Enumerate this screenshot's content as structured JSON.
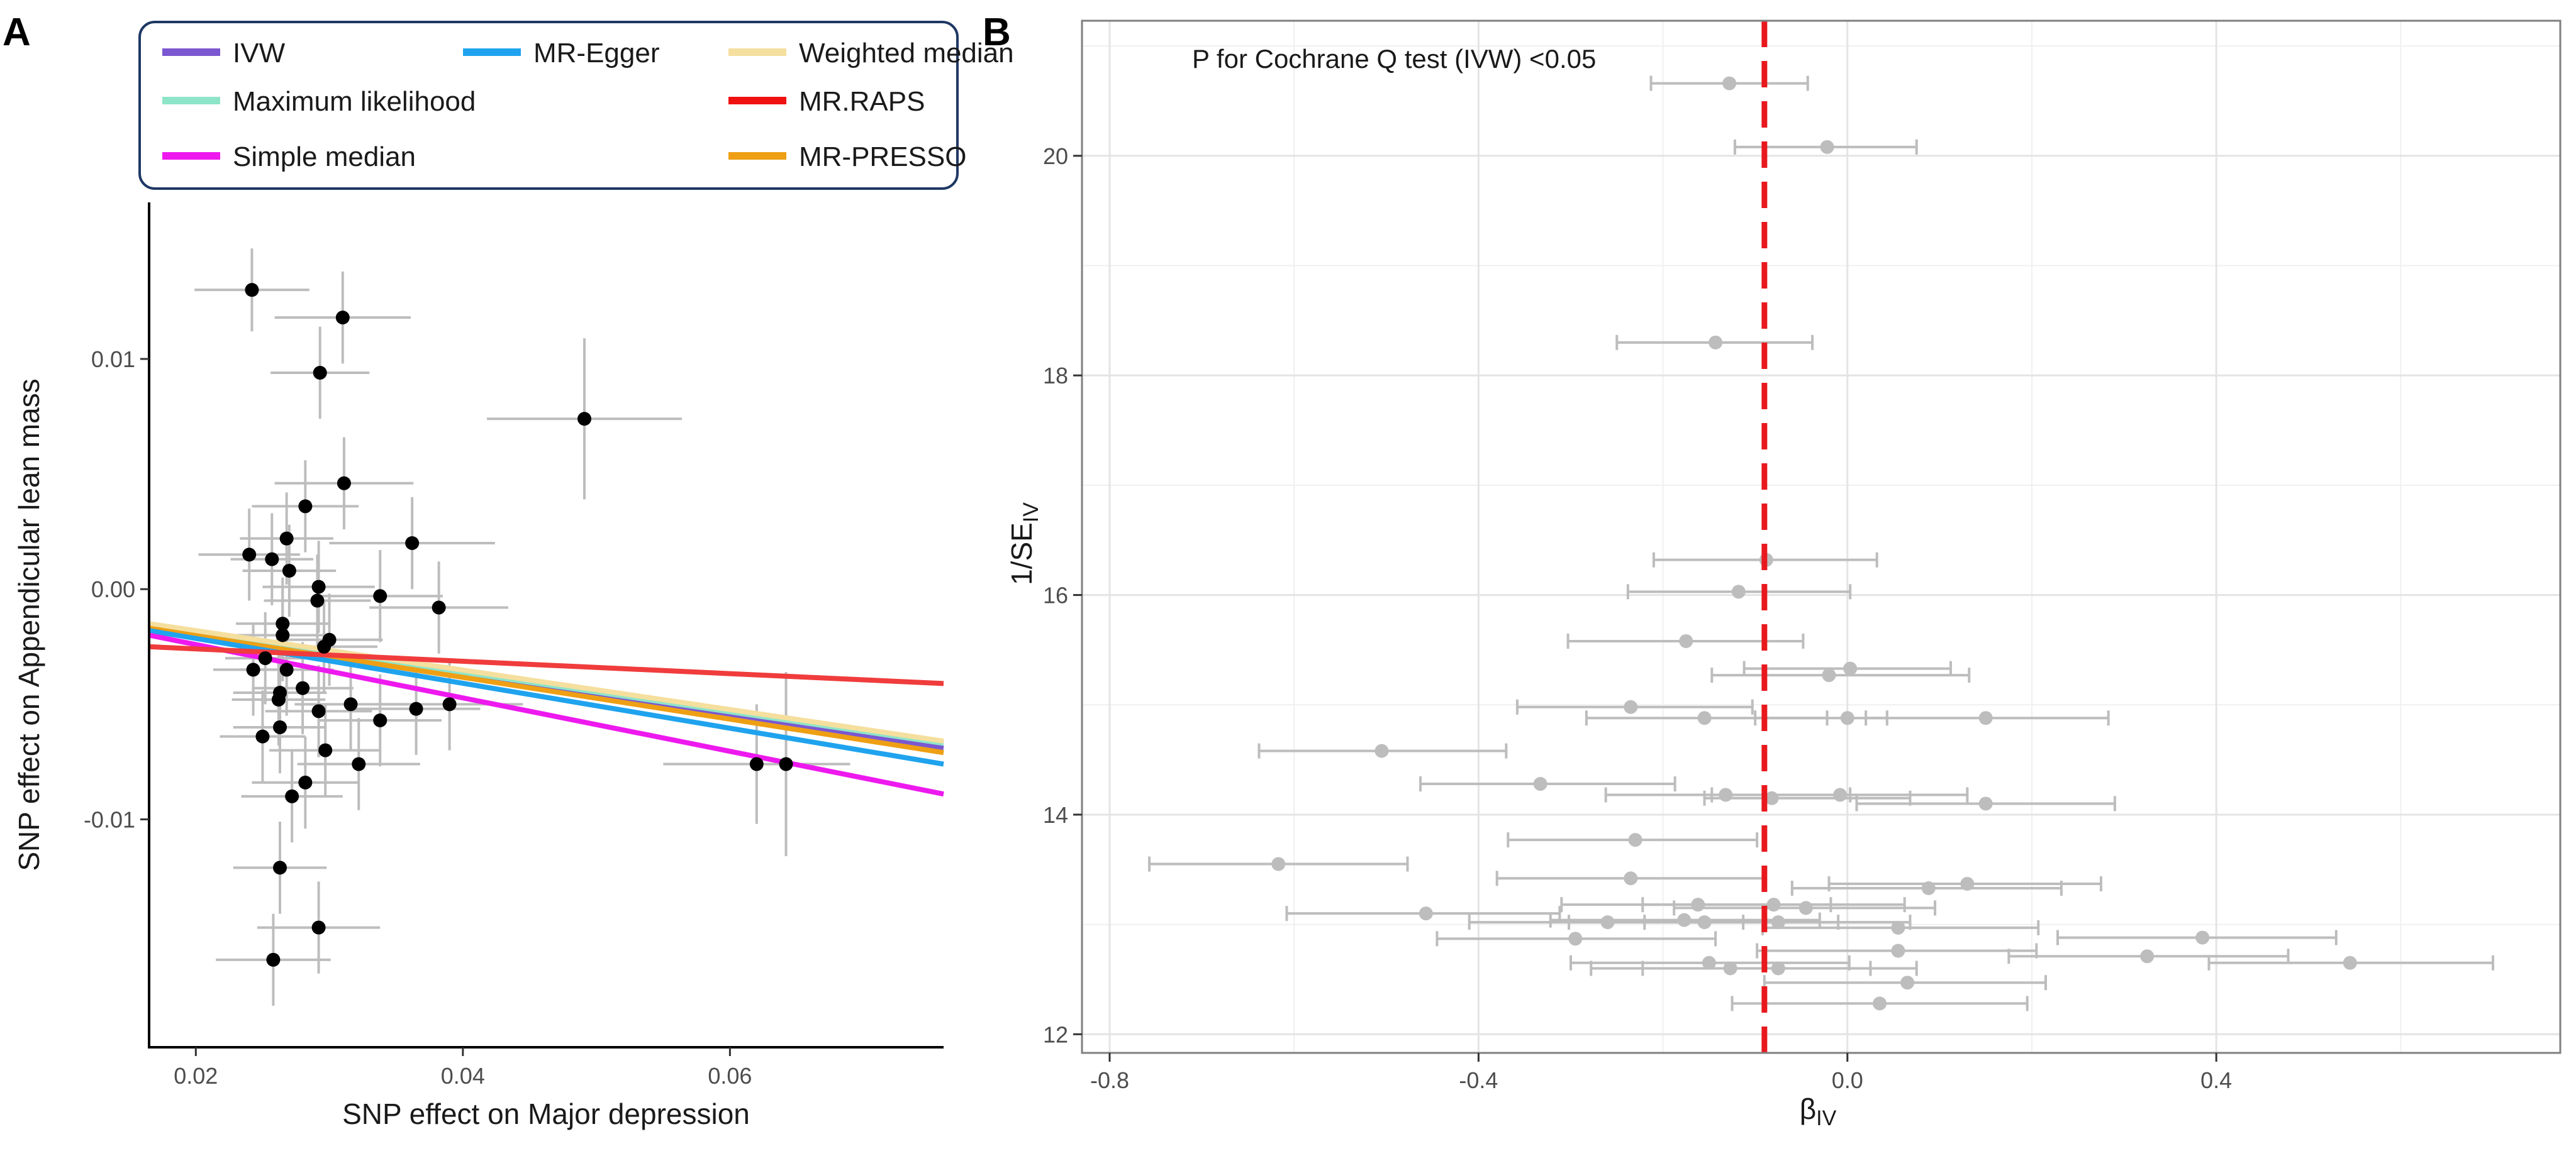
{
  "panels": {
    "a_letter": "A",
    "b_letter": "B"
  },
  "chart_data": [
    {
      "id": "A",
      "type": "scatter",
      "title": "",
      "xlabel": "SNP effect on Major depression",
      "ylabel": "SNP effect on Appendicular lean mass",
      "xlim": [
        0.0165,
        0.076
      ],
      "ylim": [
        -0.0199,
        0.0168
      ],
      "xticks": [
        0.02,
        0.04,
        0.06
      ],
      "xtick_labels": [
        "0.02",
        "0.04",
        "0.06"
      ],
      "yticks": [
        -0.01,
        0.0,
        0.01
      ],
      "ytick_labels": [
        "-0.01",
        "0.00",
        "0.01"
      ],
      "grid": false,
      "legend_position": "top",
      "points": [
        {
          "x": 0.0242,
          "y": 0.013,
          "xerr": 0.0043,
          "yerr": 0.0018
        },
        {
          "x": 0.031,
          "y": 0.0118,
          "xerr": 0.0051,
          "yerr": 0.002
        },
        {
          "x": 0.0293,
          "y": 0.0094,
          "xerr": 0.0037,
          "yerr": 0.002
        },
        {
          "x": 0.0491,
          "y": 0.0074,
          "xerr": 0.0073,
          "yerr": 0.0035
        },
        {
          "x": 0.0311,
          "y": 0.0046,
          "xerr": 0.0052,
          "yerr": 0.002
        },
        {
          "x": 0.0282,
          "y": 0.0036,
          "xerr": 0.004,
          "yerr": 0.002
        },
        {
          "x": 0.0268,
          "y": 0.0022,
          "xerr": 0.0035,
          "yerr": 0.002
        },
        {
          "x": 0.0362,
          "y": 0.002,
          "xerr": 0.0062,
          "yerr": 0.002
        },
        {
          "x": 0.024,
          "y": 0.0015,
          "xerr": 0.0038,
          "yerr": 0.002
        },
        {
          "x": 0.0257,
          "y": 0.0013,
          "xerr": 0.0031,
          "yerr": 0.002
        },
        {
          "x": 0.027,
          "y": 0.0008,
          "xerr": 0.0035,
          "yerr": 0.002
        },
        {
          "x": 0.0292,
          "y": 0.0001,
          "xerr": 0.0042,
          "yerr": 0.002
        },
        {
          "x": 0.0338,
          "y": -0.0003,
          "xerr": 0.0047,
          "yerr": 0.002
        },
        {
          "x": 0.0291,
          "y": -0.0005,
          "xerr": 0.004,
          "yerr": 0.002
        },
        {
          "x": 0.0382,
          "y": -0.0008,
          "xerr": 0.0052,
          "yerr": 0.002
        },
        {
          "x": 0.0265,
          "y": -0.0015,
          "xerr": 0.0035,
          "yerr": 0.002
        },
        {
          "x": 0.0265,
          "y": -0.002,
          "xerr": 0.0035,
          "yerr": 0.002
        },
        {
          "x": 0.03,
          "y": -0.0022,
          "xerr": 0.004,
          "yerr": 0.002
        },
        {
          "x": 0.0296,
          "y": -0.0025,
          "xerr": 0.004,
          "yerr": 0.002
        },
        {
          "x": 0.0252,
          "y": -0.003,
          "xerr": 0.003,
          "yerr": 0.002
        },
        {
          "x": 0.0243,
          "y": -0.0035,
          "xerr": 0.003,
          "yerr": 0.002
        },
        {
          "x": 0.0268,
          "y": -0.0035,
          "xerr": 0.0035,
          "yerr": 0.002
        },
        {
          "x": 0.028,
          "y": -0.0043,
          "xerr": 0.0038,
          "yerr": 0.002
        },
        {
          "x": 0.0263,
          "y": -0.0045,
          "xerr": 0.0035,
          "yerr": 0.002
        },
        {
          "x": 0.0262,
          "y": -0.0048,
          "xerr": 0.0035,
          "yerr": 0.002
        },
        {
          "x": 0.0292,
          "y": -0.0053,
          "xerr": 0.004,
          "yerr": 0.002
        },
        {
          "x": 0.039,
          "y": -0.005,
          "xerr": 0.0055,
          "yerr": 0.002
        },
        {
          "x": 0.0316,
          "y": -0.005,
          "xerr": 0.0042,
          "yerr": 0.002
        },
        {
          "x": 0.0365,
          "y": -0.0052,
          "xerr": 0.0048,
          "yerr": 0.002
        },
        {
          "x": 0.0338,
          "y": -0.0057,
          "xerr": 0.0046,
          "yerr": 0.002
        },
        {
          "x": 0.0263,
          "y": -0.006,
          "xerr": 0.0035,
          "yerr": 0.002
        },
        {
          "x": 0.025,
          "y": -0.0064,
          "xerr": 0.0032,
          "yerr": 0.002
        },
        {
          "x": 0.0297,
          "y": -0.007,
          "xerr": 0.0042,
          "yerr": 0.002
        },
        {
          "x": 0.0322,
          "y": -0.0076,
          "xerr": 0.0046,
          "yerr": 0.002
        },
        {
          "x": 0.062,
          "y": -0.0076,
          "xerr": 0.007,
          "yerr": 0.0026
        },
        {
          "x": 0.0642,
          "y": -0.0076,
          "xerr": 0.0048,
          "yerr": 0.004
        },
        {
          "x": 0.0282,
          "y": -0.0084,
          "xerr": 0.004,
          "yerr": 0.002
        },
        {
          "x": 0.0272,
          "y": -0.009,
          "xerr": 0.0038,
          "yerr": 0.002
        },
        {
          "x": 0.0263,
          "y": -0.0121,
          "xerr": 0.0035,
          "yerr": 0.002
        },
        {
          "x": 0.0292,
          "y": -0.0147,
          "xerr": 0.0046,
          "yerr": 0.002
        },
        {
          "x": 0.0258,
          "y": -0.0161,
          "xerr": 0.0043,
          "yerr": 0.002
        }
      ],
      "lines": [
        {
          "name": "IVW",
          "color": "#7b57d1",
          "x0": 0.0165,
          "y0": -0.0017,
          "x1": 0.076,
          "y1": -0.0069
        },
        {
          "name": "Maximum likelihood",
          "color": "#8ee4c8",
          "x0": 0.0165,
          "y0": -0.0016,
          "x1": 0.076,
          "y1": -0.0067
        },
        {
          "name": "Weighted median",
          "color": "#f5df9e",
          "x0": 0.0165,
          "y0": -0.0015,
          "x1": 0.076,
          "y1": -0.0066
        },
        {
          "name": "MR-PRESSO",
          "color": "#ee9f14",
          "x0": 0.0165,
          "y0": -0.0017,
          "x1": 0.076,
          "y1": -0.0071
        },
        {
          "name": "MR-Egger",
          "color": "#1fa3ee",
          "x0": 0.0165,
          "y0": -0.0018,
          "x1": 0.076,
          "y1": -0.0076
        },
        {
          "name": "Simple median",
          "color": "#ee19ee",
          "x0": 0.0165,
          "y0": -0.002,
          "x1": 0.076,
          "y1": -0.0089
        },
        {
          "name": "MR.RAPS",
          "color": "#f03c3c",
          "x0": 0.0165,
          "y0": -0.0025,
          "x1": 0.076,
          "y1": -0.0041
        }
      ],
      "legend": [
        {
          "name": "IVW",
          "color": "#7b57d1"
        },
        {
          "name": "MR-Egger",
          "color": "#1fa3ee"
        },
        {
          "name": "Weighted median",
          "color": "#f5df9e"
        },
        {
          "name": "Maximum likelihood",
          "color": "#8ee4c8"
        },
        {
          "name": "MR.RAPS",
          "color": "#f01010"
        },
        {
          "name": "Simple median",
          "color": "#ee19ee"
        },
        {
          "name": "MR-PRESSO",
          "color": "#ee9f14"
        }
      ]
    },
    {
      "id": "B",
      "type": "scatter",
      "title": "",
      "xlabel": "βIV",
      "xlabel_main": "β",
      "xlabel_sub": "IV",
      "ylabel": "1/SEIV",
      "ylabel_main": "1/SE",
      "ylabel_sub": "IV",
      "annotation": "P for Cochrane Q test (IVW) <0.05",
      "xlim": [
        -0.83,
        0.773
      ],
      "ylim": [
        11.83,
        21.23
      ],
      "xticks": [
        -0.8,
        -0.4,
        0.0,
        0.4
      ],
      "xtick_labels": [
        "-0.8",
        "-0.4",
        "0.0",
        "0.4"
      ],
      "yticks": [
        12,
        14,
        16,
        18,
        20
      ],
      "ytick_labels": [
        "12",
        "14",
        "16",
        "18",
        "20"
      ],
      "minor_xgrid": [
        -0.6,
        -0.2,
        0.2,
        0.6
      ],
      "minor_ygrid": [
        13,
        15,
        17,
        19,
        21
      ],
      "grid": true,
      "reference_line": {
        "x": -0.09,
        "color": "#e8191e",
        "style": "dashed"
      },
      "points": [
        {
          "beta": -0.128,
          "inv_se": 20.66,
          "lo": -0.213,
          "hi": -0.043
        },
        {
          "beta": -0.022,
          "inv_se": 20.08,
          "lo": -0.122,
          "hi": 0.075
        },
        {
          "beta": -0.143,
          "inv_se": 18.3,
          "lo": -0.25,
          "hi": -0.038
        },
        {
          "beta": -0.088,
          "inv_se": 16.32,
          "lo": -0.21,
          "hi": 0.032
        },
        {
          "beta": -0.118,
          "inv_se": 16.03,
          "lo": -0.238,
          "hi": 0.003
        },
        {
          "beta": -0.175,
          "inv_se": 15.58,
          "lo": -0.303,
          "hi": -0.048
        },
        {
          "beta": 0.003,
          "inv_se": 15.33,
          "lo": -0.112,
          "hi": 0.112
        },
        {
          "beta": -0.02,
          "inv_se": 15.27,
          "lo": -0.147,
          "hi": 0.132
        },
        {
          "beta": -0.235,
          "inv_se": 14.98,
          "lo": -0.358,
          "hi": -0.103
        },
        {
          "beta": -0.155,
          "inv_se": 14.88,
          "lo": -0.283,
          "hi": -0.022
        },
        {
          "beta": 0.15,
          "inv_se": 14.88,
          "lo": 0.02,
          "hi": 0.283
        },
        {
          "beta": 0.0,
          "inv_se": 14.88,
          "lo": -0.1,
          "hi": 0.043
        },
        {
          "beta": -0.505,
          "inv_se": 14.58,
          "lo": -0.638,
          "hi": -0.37
        },
        {
          "beta": -0.333,
          "inv_se": 14.28,
          "lo": -0.463,
          "hi": -0.187
        },
        {
          "beta": -0.132,
          "inv_se": 14.18,
          "lo": -0.262,
          "hi": 0.003
        },
        {
          "beta": -0.082,
          "inv_se": 14.15,
          "lo": -0.155,
          "hi": 0.068
        },
        {
          "beta": -0.008,
          "inv_se": 14.18,
          "lo": -0.147,
          "hi": 0.13
        },
        {
          "beta": 0.15,
          "inv_se": 14.1,
          "lo": 0.01,
          "hi": 0.29
        },
        {
          "beta": -0.23,
          "inv_se": 13.77,
          "lo": -0.368,
          "hi": -0.098
        },
        {
          "beta": -0.617,
          "inv_se": 13.55,
          "lo": -0.757,
          "hi": -0.477
        },
        {
          "beta": -0.235,
          "inv_se": 13.42,
          "lo": -0.38,
          "hi": -0.09
        },
        {
          "beta": 0.13,
          "inv_se": 13.37,
          "lo": -0.02,
          "hi": 0.275
        },
        {
          "beta": 0.088,
          "inv_se": 13.33,
          "lo": -0.06,
          "hi": 0.232
        },
        {
          "beta": -0.162,
          "inv_se": 13.18,
          "lo": -0.31,
          "hi": -0.018
        },
        {
          "beta": -0.08,
          "inv_se": 13.18,
          "lo": -0.222,
          "hi": 0.062
        },
        {
          "beta": -0.045,
          "inv_se": 13.15,
          "lo": -0.188,
          "hi": 0.095
        },
        {
          "beta": -0.457,
          "inv_se": 13.1,
          "lo": -0.608,
          "hi": -0.312
        },
        {
          "beta": -0.177,
          "inv_se": 13.04,
          "lo": -0.322,
          "hi": -0.03
        },
        {
          "beta": -0.26,
          "inv_se": 13.02,
          "lo": -0.41,
          "hi": -0.113
        },
        {
          "beta": -0.155,
          "inv_se": 13.02,
          "lo": -0.302,
          "hi": -0.01
        },
        {
          "beta": -0.075,
          "inv_se": 13.02,
          "lo": -0.22,
          "hi": 0.068
        },
        {
          "beta": 0.055,
          "inv_se": 12.97,
          "lo": -0.092,
          "hi": 0.207
        },
        {
          "beta": -0.295,
          "inv_se": 12.87,
          "lo": -0.445,
          "hi": -0.143
        },
        {
          "beta": 0.385,
          "inv_se": 12.88,
          "lo": 0.228,
          "hi": 0.53
        },
        {
          "beta": 0.055,
          "inv_se": 12.76,
          "lo": -0.098,
          "hi": 0.205
        },
        {
          "beta": 0.325,
          "inv_se": 12.71,
          "lo": 0.175,
          "hi": 0.478
        },
        {
          "beta": 0.545,
          "inv_se": 12.65,
          "lo": 0.392,
          "hi": 0.7
        },
        {
          "beta": -0.15,
          "inv_se": 12.65,
          "lo": -0.3,
          "hi": 0.002
        },
        {
          "beta": -0.127,
          "inv_se": 12.6,
          "lo": -0.278,
          "hi": 0.025
        },
        {
          "beta": -0.075,
          "inv_se": 12.6,
          "lo": -0.222,
          "hi": 0.075
        },
        {
          "beta": 0.065,
          "inv_se": 12.47,
          "lo": -0.09,
          "hi": 0.215
        },
        {
          "beta": 0.035,
          "inv_se": 12.28,
          "lo": -0.125,
          "hi": 0.195
        }
      ]
    }
  ]
}
